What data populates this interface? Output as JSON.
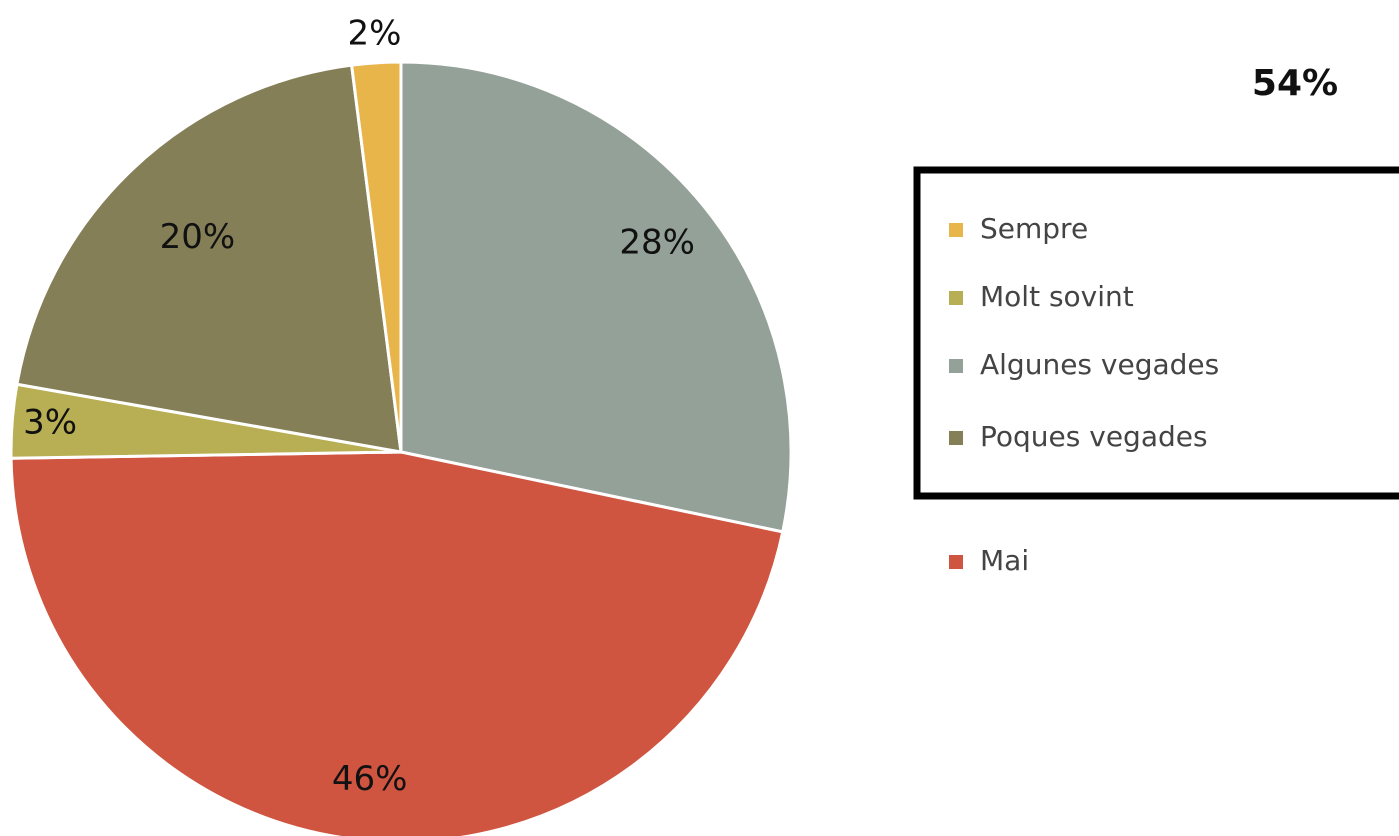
{
  "chart_data": {
    "type": "pie",
    "annotation": "54%",
    "categories": [
      "Sempre",
      "Molt sovint",
      "Algunes vegades",
      "Poques vegades",
      "Mai"
    ],
    "values": [
      2,
      3,
      28,
      20,
      46
    ],
    "value_labels": [
      "2%",
      "3%",
      "28%",
      "20%",
      "46%"
    ],
    "colors": [
      "#E8B54A",
      "#B8AE54",
      "#94A199",
      "#857F58",
      "#CF5540"
    ]
  }
}
